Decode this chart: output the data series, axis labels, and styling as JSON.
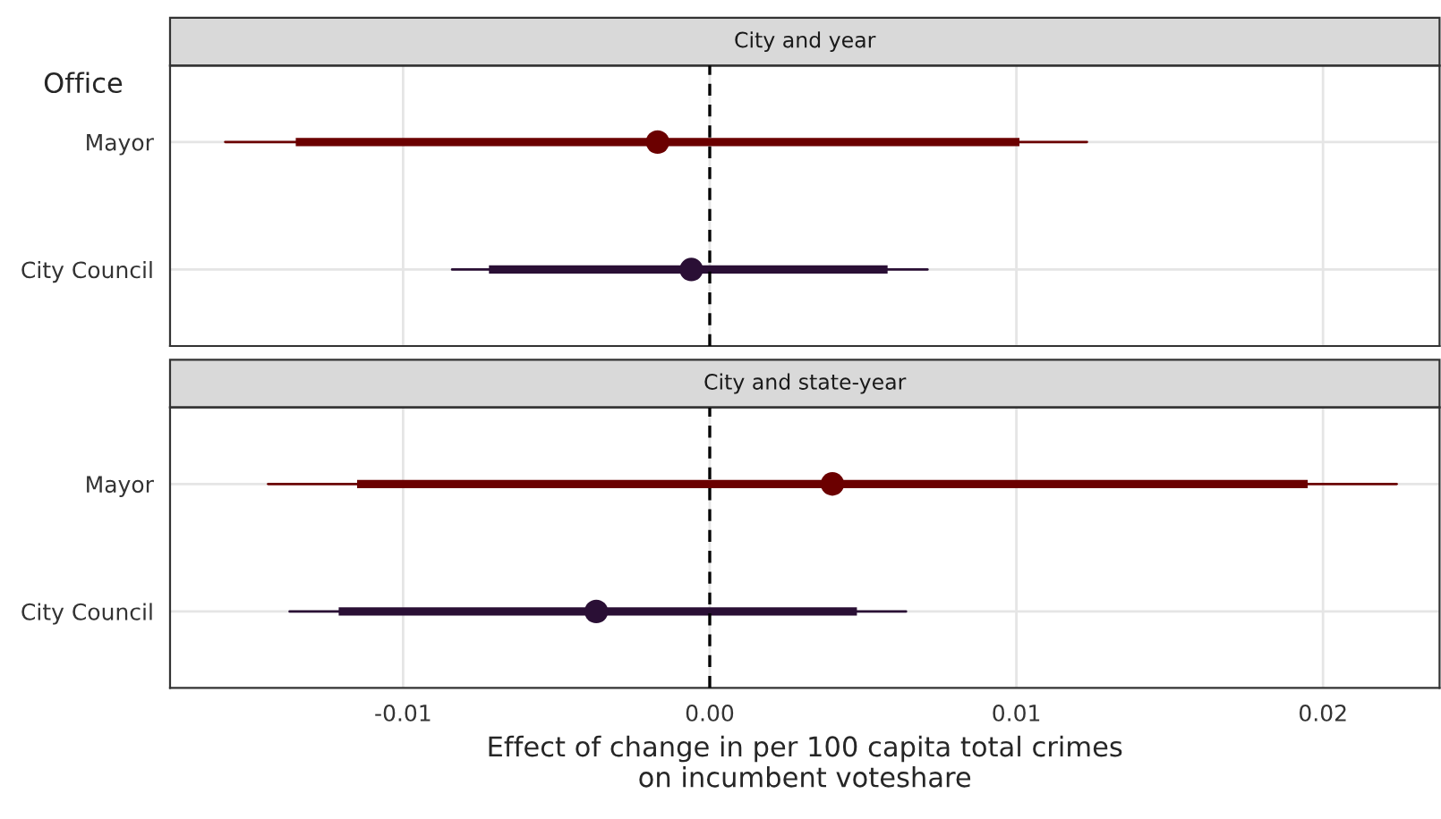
{
  "chart_data": [
    {
      "type": "scatter",
      "title": "City and year",
      "ylabel": "Office",
      "orientation": "horizontal",
      "categories": [
        "Mayor",
        "City Council"
      ],
      "series": [
        {
          "type": "bar",
          "colors": [
            "#6b0000",
            "#2a0f35"
          ],
          "base": [
            -0.0135,
            -0.0072
          ],
          "values": [
            0.0236,
            0.013
          ]
        },
        {
          "marker": "circle",
          "colors": [
            "#6b0000",
            "#2a0f35"
          ],
          "values": [
            -0.0017,
            -0.0006
          ],
          "errors": [
            [
              -0.0158,
              0.0123
            ],
            [
              -0.0084,
              0.0071
            ]
          ]
        }
      ],
      "xlim": [
        -0.0176,
        0.0238
      ],
      "xticks": [
        -0.01,
        0,
        0.01,
        0.02
      ],
      "ref_lines": [
        {
          "axis": "x",
          "value": 0,
          "color": "#000000",
          "line_style": "dashed"
        }
      ],
      "grid": true,
      "tick_labels": "y"
    },
    {
      "type": "scatter",
      "title": "City and state-year",
      "xlabel": "Effect of change in per 100 capita total crimes\non incumbent voteshare",
      "orientation": "horizontal",
      "categories": [
        "Mayor",
        "City Council"
      ],
      "series": [
        {
          "type": "bar",
          "colors": [
            "#6b0000",
            "#2a0f35"
          ],
          "base": [
            -0.0115,
            -0.0121
          ],
          "values": [
            0.031,
            0.0169
          ]
        },
        {
          "marker": "circle",
          "colors": [
            "#6b0000",
            "#2a0f35"
          ],
          "values": [
            0.004,
            -0.0037
          ],
          "errors": [
            [
              -0.0144,
              0.0224
            ],
            [
              -0.0137,
              0.0064
            ]
          ]
        }
      ],
      "xlim": [
        -0.0176,
        0.0238
      ],
      "xticks": [
        {
          "value": -0.01,
          "label": "-0.01"
        },
        {
          "value": 0,
          "label": "0.00"
        },
        {
          "value": 0.01,
          "label": "0.01"
        },
        {
          "value": 0.02,
          "label": "0.02"
        }
      ],
      "ref_lines": [
        {
          "axis": "x",
          "value": 0,
          "color": "#000000",
          "line_style": "dashed"
        }
      ],
      "grid": true
    }
  ]
}
